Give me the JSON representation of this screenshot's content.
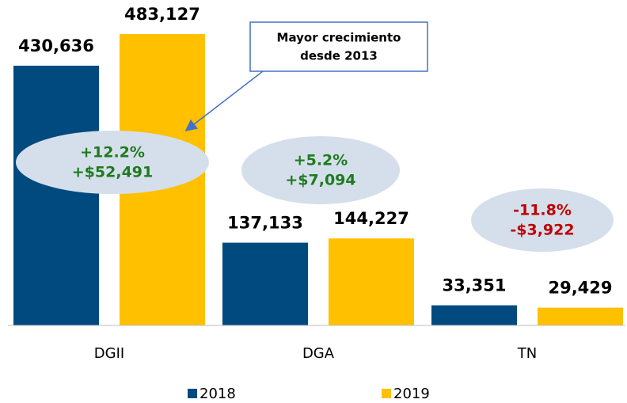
{
  "chart_data": {
    "type": "bar",
    "categories": [
      "DGII",
      "DGA",
      "TN"
    ],
    "series": [
      {
        "name": "2018",
        "color": "#004a80",
        "values": [
          430636,
          137133,
          33351
        ],
        "value_labels": [
          "430,636",
          "137,133",
          "33,351"
        ]
      },
      {
        "name": "2019",
        "color": "#ffc000",
        "values": [
          483127,
          144227,
          29429
        ],
        "value_labels": [
          "483,127",
          "144,227",
          "29,429"
        ]
      }
    ],
    "annotations": [
      {
        "lines": [
          "+12.2%",
          "+$52,491"
        ],
        "color": "#1e7b1e"
      },
      {
        "lines": [
          "+5.2%",
          "+$7,094"
        ],
        "color": "#1e7b1e"
      },
      {
        "lines": [
          "-11.8%",
          "-$3,922"
        ],
        "color": "#c00000"
      }
    ],
    "callout": [
      "Mayor crecimiento",
      "desde 2013"
    ]
  }
}
